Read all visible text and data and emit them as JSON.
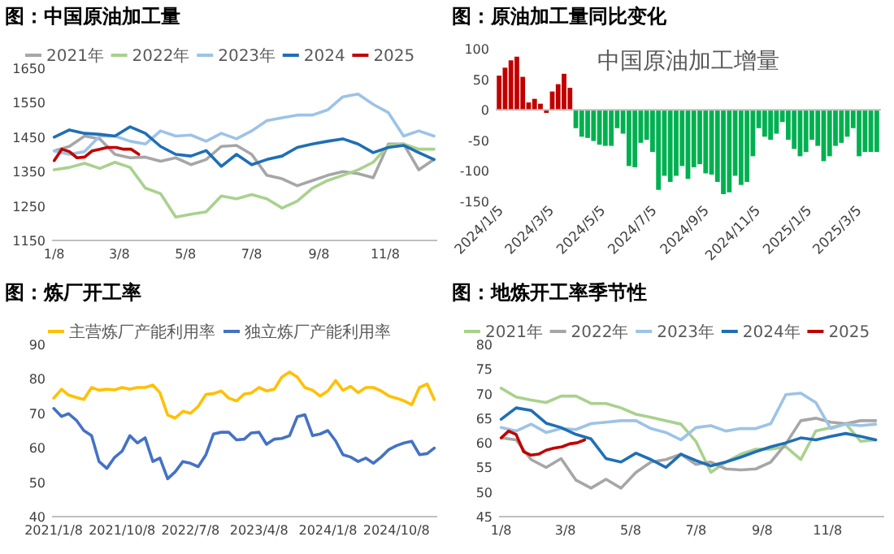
{
  "chart_data": [
    {
      "type": "line",
      "title": "图：中国原油加工量",
      "legend": "top",
      "xlim": [
        "--01-06",
        "--12-26"
      ],
      "ylim": [
        1150,
        1650
      ],
      "yticks": [
        1150,
        1250,
        1350,
        1450,
        1550,
        1650
      ],
      "xticks": [
        {
          "value": "--01-08",
          "label": "1/8"
        },
        {
          "value": "--03-08",
          "label": "3/8"
        },
        {
          "value": "--05-08",
          "label": "5/8"
        },
        {
          "value": "--07-08",
          "label": "7/8"
        },
        {
          "value": "--09-08",
          "label": "9/8"
        },
        {
          "value": "--11-08",
          "label": "11/8"
        }
      ],
      "x": [
        "--01-08",
        "--01-22",
        "--02-05",
        "--02-19",
        "--03-04",
        "--03-18",
        "--04-01",
        "--04-15",
        "--04-29",
        "--05-13",
        "--05-27",
        "--06-10",
        "--06-24",
        "--07-08",
        "--07-22",
        "--08-05",
        "--08-19",
        "--09-02",
        "--09-16",
        "--09-30",
        "--10-14",
        "--10-28",
        "--11-11",
        "--11-25",
        "--12-09",
        "--12-23"
      ],
      "series": [
        {
          "name": "2021年",
          "color": "#a6a6a6",
          "values": [
            1410,
            1423,
            1453,
            1445,
            1400,
            1390,
            1392,
            1380,
            1390,
            1370,
            1385,
            1423,
            1426,
            1400,
            1339,
            1329,
            1309,
            1324,
            1339,
            1350,
            1344,
            1332,
            1430,
            1430,
            1355,
            1385
          ]
        },
        {
          "name": "2022年",
          "color": "#a9d18e",
          "values": [
            1355,
            1362,
            1374,
            1359,
            1377,
            1362,
            1302,
            1286,
            1218,
            1226,
            1233,
            1279,
            1271,
            1283,
            1271,
            1244,
            1264,
            1302,
            1324,
            1339,
            1355,
            1377,
            1426,
            1430,
            1415,
            1415
          ]
        },
        {
          "name": "2023年",
          "color": "#9dc3e6",
          "values": [
            1410,
            1400,
            1408,
            1453,
            1453,
            1438,
            1430,
            1468,
            1453,
            1456,
            1438,
            1461,
            1445,
            1468,
            1498,
            1506,
            1514,
            1514,
            1529,
            1567,
            1575,
            1545,
            1521,
            1453,
            1468,
            1453
          ]
        },
        {
          "name": "2024",
          "color": "#1f6fb4",
          "values": [
            1450,
            1471,
            1461,
            1458,
            1453,
            1480,
            1461,
            1423,
            1400,
            1395,
            1411,
            1365,
            1400,
            1370,
            1385,
            1395,
            1420,
            1430,
            1438,
            1445,
            1430,
            1405,
            1420,
            1426,
            1405,
            1385
          ]
        },
        {
          "name": "2025",
          "color": "#c00000",
          "x": [
            "--01-08",
            "--01-15",
            "--01-22",
            "--01-29",
            "--02-05",
            "--02-12",
            "--02-19",
            "--02-26",
            "--03-05",
            "--03-12",
            "--03-19",
            "--03-26"
          ],
          "values": [
            1382,
            1415,
            1408,
            1390,
            1392,
            1410,
            1415,
            1420,
            1420,
            1415,
            1415,
            1400
          ]
        }
      ]
    },
    {
      "type": "bar",
      "title": "图：原油加工量同比变化",
      "subtitle": "中国原油加工增量",
      "xlim": [
        "2024-01-01",
        "2025-04-02"
      ],
      "ylim": [
        -150,
        100
      ],
      "yticks": [
        -150,
        -100,
        -50,
        0,
        50,
        100
      ],
      "xticks": [
        {
          "value": "2024-01-05",
          "label": "2024/1/5"
        },
        {
          "value": "2024-03-05",
          "label": "2024/3/5"
        },
        {
          "value": "2024-05-05",
          "label": "2024/5/5"
        },
        {
          "value": "2024-07-05",
          "label": "2024/7/5"
        },
        {
          "value": "2024-09-05",
          "label": "2024/9/5"
        },
        {
          "value": "2024-11-05",
          "label": "2024/11/5"
        },
        {
          "value": "2025-01-05",
          "label": "2025/1/5"
        },
        {
          "value": "2025-03-05",
          "label": "2025/3/5"
        }
      ],
      "x": [
        "2024-01-05",
        "2024-01-12",
        "2024-01-19",
        "2024-01-26",
        "2024-02-02",
        "2024-02-09",
        "2024-02-16",
        "2024-02-23",
        "2024-03-01",
        "2024-03-08",
        "2024-03-15",
        "2024-03-22",
        "2024-03-29",
        "2024-04-05",
        "2024-04-12",
        "2024-04-19",
        "2024-04-26",
        "2024-05-03",
        "2024-05-10",
        "2024-05-17",
        "2024-05-24",
        "2024-05-31",
        "2024-06-07",
        "2024-06-14",
        "2024-06-21",
        "2024-06-28",
        "2024-07-05",
        "2024-07-12",
        "2024-07-19",
        "2024-07-26",
        "2024-08-02",
        "2024-08-09",
        "2024-08-16",
        "2024-08-23",
        "2024-08-30",
        "2024-09-06",
        "2024-09-13",
        "2024-09-20",
        "2024-09-27",
        "2024-10-04",
        "2024-10-11",
        "2024-10-18",
        "2024-10-25",
        "2024-11-01",
        "2024-11-08",
        "2024-11-15",
        "2024-11-22",
        "2024-11-29",
        "2024-12-06",
        "2024-12-13",
        "2024-12-20",
        "2024-12-27",
        "2025-01-03",
        "2025-01-10",
        "2025-01-17",
        "2025-01-24",
        "2025-01-31",
        "2025-02-07",
        "2025-02-14",
        "2025-02-21",
        "2025-02-28",
        "2025-03-07",
        "2025-03-14",
        "2025-03-21",
        "2025-03-28"
      ],
      "values": [
        56,
        69,
        81,
        87,
        54,
        12,
        18,
        10,
        -5,
        30,
        42,
        59,
        36,
        -30,
        -44,
        -46,
        -51,
        -57,
        -59,
        -59,
        -30,
        -39,
        -92,
        -94,
        -54,
        -49,
        -69,
        -131,
        -108,
        -118,
        -108,
        -92,
        -113,
        -94,
        -89,
        -104,
        -106,
        -118,
        -138,
        -135,
        -108,
        -123,
        -118,
        -76,
        -30,
        -44,
        -49,
        -39,
        -20,
        -49,
        -64,
        -76,
        -69,
        -49,
        -59,
        -84,
        -76,
        -59,
        -54,
        -44,
        -30,
        -76,
        -69,
        -69,
        -69
      ],
      "colors": [
        "#c00000",
        "#c00000",
        "#c00000",
        "#c00000",
        "#c00000",
        "#c00000",
        "#c00000",
        "#c00000",
        "#c00000",
        "#c00000",
        "#c00000",
        "#c00000",
        "#c00000",
        "#00b050",
        "#00b050",
        "#00b050",
        "#00b050",
        "#00b050",
        "#00b050",
        "#00b050",
        "#00b050",
        "#00b050",
        "#00b050",
        "#00b050",
        "#00b050",
        "#00b050",
        "#00b050",
        "#00b050",
        "#00b050",
        "#00b050",
        "#00b050",
        "#00b050",
        "#00b050",
        "#00b050",
        "#00b050",
        "#00b050",
        "#00b050",
        "#00b050",
        "#00b050",
        "#00b050",
        "#00b050",
        "#00b050",
        "#00b050",
        "#00b050",
        "#00b050",
        "#00b050",
        "#00b050",
        "#00b050",
        "#00b050",
        "#00b050",
        "#00b050",
        "#00b050",
        "#00b050",
        "#00b050",
        "#00b050",
        "#00b050",
        "#00b050",
        "#00b050",
        "#00b050",
        "#00b050",
        "#00b050",
        "#00b050",
        "#00b050",
        "#00b050",
        "#00b050"
      ]
    },
    {
      "type": "line",
      "title": "图：炼厂开工率",
      "legend": "top",
      "xlim": [
        "2021-01-01",
        "2025-03-20"
      ],
      "ylim": [
        40,
        90
      ],
      "yticks": [
        40,
        50,
        60,
        70,
        80,
        90
      ],
      "xticks": [
        {
          "value": "2021-01-08",
          "label": "2021/1/8"
        },
        {
          "value": "2021-10-08",
          "label": "2021/10/8"
        },
        {
          "value": "2022-07-08",
          "label": "2022/7/8"
        },
        {
          "value": "2023-04-08",
          "label": "2023/4/8"
        },
        {
          "value": "2024-01-08",
          "label": "2024/1/8"
        },
        {
          "value": "2024-10-08",
          "label": "2024/10/8"
        }
      ],
      "x": [
        "2021-01-08",
        "2021-02-08",
        "2021-03-08",
        "2021-04-08",
        "2021-05-08",
        "2021-06-08",
        "2021-07-08",
        "2021-08-08",
        "2021-09-08",
        "2021-10-08",
        "2021-11-08",
        "2021-12-08",
        "2022-01-08",
        "2022-02-08",
        "2022-03-08",
        "2022-04-08",
        "2022-05-08",
        "2022-06-08",
        "2022-07-08",
        "2022-08-08",
        "2022-09-08",
        "2022-10-08",
        "2022-11-08",
        "2022-12-08",
        "2023-01-08",
        "2023-02-08",
        "2023-03-08",
        "2023-04-08",
        "2023-05-08",
        "2023-06-08",
        "2023-07-08",
        "2023-08-08",
        "2023-09-08",
        "2023-10-08",
        "2023-11-08",
        "2023-12-08",
        "2024-01-08",
        "2024-02-08",
        "2024-03-08",
        "2024-04-08",
        "2024-05-08",
        "2024-06-08",
        "2024-07-08",
        "2024-08-08",
        "2024-09-08",
        "2024-10-08",
        "2024-11-08",
        "2024-12-08",
        "2025-01-08",
        "2025-02-08",
        "2025-03-08"
      ],
      "series": [
        {
          "name": "主营炼厂产能利用率",
          "color": "#ffc000",
          "values": [
            74.4,
            77,
            75.3,
            74.6,
            74,
            77.5,
            76.7,
            77,
            76.8,
            77.5,
            77,
            77.5,
            77.5,
            78.2,
            76,
            69.5,
            68.6,
            70.6,
            70,
            72,
            75.5,
            75.7,
            76.5,
            74.4,
            73.6,
            75.6,
            75.9,
            77.5,
            76.5,
            77,
            80.5,
            82,
            80.5,
            77.5,
            76.7,
            75,
            76.5,
            79.5,
            76.7,
            77.8,
            76,
            77.5,
            77.5,
            76.5,
            75,
            74.4,
            73.6,
            72.5,
            77.5,
            78.5,
            74
          ]
        },
        {
          "name": "独立炼厂产能利用率",
          "color": "#4472c4",
          "values": [
            71.4,
            69.1,
            69.9,
            68,
            65,
            63.5,
            56,
            54,
            57.2,
            59,
            63.5,
            61.4,
            62.9,
            56,
            57,
            51,
            53,
            56,
            55.5,
            54.5,
            58,
            64,
            64.5,
            64.5,
            62.3,
            62.5,
            64.3,
            64.5,
            61,
            62.5,
            62.7,
            63.5,
            69,
            69.6,
            63.5,
            64,
            65,
            62,
            58,
            57.3,
            56,
            57,
            55.5,
            57.3,
            59.5,
            60.6,
            61.4,
            61.9,
            58,
            58.3,
            59.9
          ]
        }
      ]
    },
    {
      "type": "line",
      "title": "图：地炼开工率季节性",
      "legend": "top",
      "xlim": [
        "--01-06",
        "--12-31"
      ],
      "ylim": [
        45,
        80
      ],
      "yticks": [
        45,
        50,
        55,
        60,
        65,
        70,
        75,
        80
      ],
      "xticks": [
        {
          "value": "--01-08",
          "label": "1/8"
        },
        {
          "value": "--03-08",
          "label": "3/8"
        },
        {
          "value": "--05-08",
          "label": "5/8"
        },
        {
          "value": "--07-08",
          "label": "7/8"
        },
        {
          "value": "--09-08",
          "label": "9/8"
        },
        {
          "value": "--11-08",
          "label": "11/8"
        }
      ],
      "x": [
        "--01-08",
        "--01-22",
        "--02-05",
        "--02-19",
        "--03-04",
        "--03-18",
        "--04-01",
        "--04-15",
        "--04-29",
        "--05-13",
        "--05-27",
        "--06-10",
        "--06-24",
        "--07-08",
        "--07-22",
        "--08-05",
        "--08-19",
        "--09-02",
        "--09-16",
        "--09-30",
        "--10-14",
        "--10-28",
        "--11-11",
        "--11-25",
        "--12-09",
        "--12-23"
      ],
      "series": [
        {
          "name": "2021年",
          "color": "#a9d18e",
          "values": [
            71.1,
            69.3,
            68.7,
            68.2,
            69.5,
            69.5,
            68,
            68,
            67.1,
            65.8,
            65.2,
            64.5,
            63.8,
            60.3,
            54,
            56.1,
            57.7,
            58.7,
            58.7,
            59.2,
            56.6,
            62.4,
            63.1,
            63.9,
            60.3,
            60.6
          ]
        },
        {
          "name": "2022年",
          "color": "#a6a6a6",
          "values": [
            61,
            60.6,
            56.6,
            55,
            56.8,
            52.4,
            50.8,
            52.6,
            50.8,
            54,
            56.1,
            56.6,
            57.7,
            55.6,
            56.1,
            54.7,
            54.5,
            54.7,
            56.1,
            59.8,
            64.5,
            65,
            64.2,
            63.9,
            64.5,
            64.5
          ]
        },
        {
          "name": "2023年",
          "color": "#9dc3e6",
          "values": [
            63.1,
            62.4,
            63.8,
            62.1,
            62.9,
            62.7,
            63.9,
            64.2,
            64.5,
            64.5,
            62.9,
            62.1,
            60.6,
            63.1,
            63.5,
            62.4,
            62.9,
            62.9,
            63.9,
            69.8,
            70.1,
            68.2,
            62.9,
            63.8,
            63.5,
            63.8
          ]
        },
        {
          "name": "2024年",
          "color": "#1f6fb4",
          "values": [
            64.8,
            67.1,
            66.6,
            64,
            63.1,
            61.7,
            60.8,
            56.8,
            56.1,
            57.9,
            56.6,
            55,
            57.7,
            56.4,
            55.3,
            56.1,
            57.1,
            58.2,
            59.2,
            60,
            61,
            60.6,
            61.3,
            61.9,
            61.3,
            60.6
          ]
        },
        {
          "name": "2025",
          "color": "#c00000",
          "x": [
            "--01-08",
            "--01-15",
            "--01-22",
            "--01-29",
            "--02-05",
            "--02-12",
            "--02-19",
            "--02-26",
            "--03-05",
            "--03-12",
            "--03-19",
            "--03-26"
          ],
          "values": [
            61,
            62.4,
            61.7,
            58.2,
            57.5,
            57.7,
            58.5,
            58.9,
            59.2,
            59.8,
            60,
            60.6
          ]
        }
      ]
    }
  ]
}
